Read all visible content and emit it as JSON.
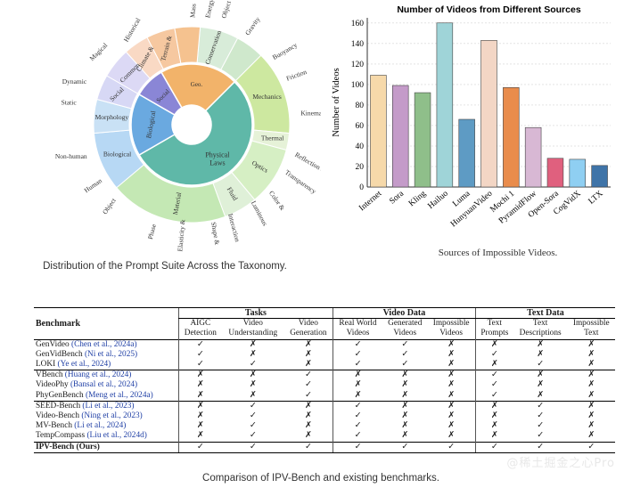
{
  "sunburst": {
    "inner": [
      "Physical Laws",
      "Biological Laws",
      "Social Laws",
      "Geo. Laws"
    ],
    "middle": [
      "Mechanics",
      "Thermal",
      "Optics",
      "Fluid Dynamics",
      "Material Properties",
      "Biological Capability",
      "Morphology",
      "Social Emo.",
      "Common Sense",
      "Climate & Weather",
      "Terrain & Environment",
      "Conservation Laws"
    ],
    "outer": [
      "Mass",
      "Energy",
      "Object Permanence",
      "Gravity",
      "Buoyancy",
      "Friction",
      "Kinematics",
      "Reflection & Refraction",
      "Transparency",
      "Color & Spectrum",
      "Luminous Abnormal",
      "Turbulence",
      "Interaction",
      "Shape & Volume",
      "Elasticity & Deformation",
      "Phase Transformations",
      "Object Interaction",
      "Human",
      "Non-human",
      "Static Anomalies",
      "Dynamic changes",
      "Magical Effects",
      "Historical"
    ],
    "caption": "Distribution of the Prompt Suite Across the Taxonomy."
  },
  "chart_data": {
    "type": "bar",
    "title": "Number of Videos from Different Sources",
    "xlabel": "Sources of Impossible Videos.",
    "ylabel": "Number of Videos",
    "ylim": [
      0,
      165
    ],
    "yticks": [
      0,
      20,
      40,
      60,
      80,
      100,
      120,
      140,
      160
    ],
    "categories": [
      "Internet",
      "Sora",
      "Kling",
      "Hailuo",
      "Luma",
      "HunyuanVideo",
      "Mochi 1",
      "PyramidFlow",
      "Open-Sora",
      "CogVidX",
      "LTX"
    ],
    "values": [
      109,
      99,
      92,
      160,
      66,
      143,
      97,
      58,
      28,
      27,
      21
    ],
    "colors": [
      "#f6d9aa",
      "#c49bc9",
      "#8fbf8a",
      "#9fd4d8",
      "#5e9bc4",
      "#f3d6c5",
      "#e98c4c",
      "#d8b8d4",
      "#e0607e",
      "#8fcff2",
      "#3f74a8"
    ],
    "grid": true
  },
  "table": {
    "col_benchmark": "Benchmark",
    "groups": [
      "Tasks",
      "Video Data",
      "Text Data"
    ],
    "subcols": [
      [
        "AIGC",
        "Detection"
      ],
      [
        "Video",
        "Understanding"
      ],
      [
        "Video",
        "Generation"
      ],
      [
        "Real World",
        "Videos"
      ],
      [
        "Generated",
        "Videos"
      ],
      [
        "Impossible",
        "Videos"
      ],
      [
        "Text",
        "Prompts"
      ],
      [
        "Text",
        "Descriptions"
      ],
      [
        "Impossible",
        "Text"
      ]
    ],
    "rows": [
      {
        "name": "GenVideo",
        "cite": "(Chen et al., 2024a)",
        "vals": [
          "✓",
          "✗",
          "✗",
          "✓",
          "✓",
          "✗",
          "✗",
          "✗",
          "✗"
        ],
        "group": 0
      },
      {
        "name": "GenVidBench",
        "cite": "(Ni et al., 2025)",
        "vals": [
          "✓",
          "✗",
          "✗",
          "✓",
          "✓",
          "✗",
          "✓",
          "✗",
          "✗"
        ],
        "group": 0
      },
      {
        "name": "LOKI",
        "cite": "(Ye et al., 2024)",
        "vals": [
          "✓",
          "✓",
          "✗",
          "✓",
          "✓",
          "✗",
          "✗",
          "✓",
          "✗"
        ],
        "group": 0
      },
      {
        "name": "VBench",
        "cite": "(Huang et al., 2024)",
        "vals": [
          "✗",
          "✗",
          "✓",
          "✗",
          "✗",
          "✗",
          "✓",
          "✗",
          "✗"
        ],
        "group": 1
      },
      {
        "name": "VideoPhy",
        "cite": "(Bansal et al., 2024)",
        "vals": [
          "✗",
          "✗",
          "✓",
          "✗",
          "✗",
          "✗",
          "✓",
          "✗",
          "✗"
        ],
        "group": 1
      },
      {
        "name": "PhyGenBench",
        "cite": "(Meng et al., 2024a)",
        "vals": [
          "✗",
          "✗",
          "✓",
          "✗",
          "✗",
          "✗",
          "✓",
          "✗",
          "✗"
        ],
        "group": 1
      },
      {
        "name": "SEED-Bench",
        "cite": "(Li et al., 2023)",
        "vals": [
          "✗",
          "✓",
          "✗",
          "✓",
          "✗",
          "✗",
          "✗",
          "✓",
          "✗"
        ],
        "group": 2
      },
      {
        "name": "Video-Bench",
        "cite": "(Ning et al., 2023)",
        "vals": [
          "✗",
          "✓",
          "✗",
          "✓",
          "✗",
          "✗",
          "✗",
          "✓",
          "✗"
        ],
        "group": 2
      },
      {
        "name": "MV-Bench",
        "cite": "(Li et al., 2024)",
        "vals": [
          "✗",
          "✓",
          "✗",
          "✓",
          "✗",
          "✗",
          "✗",
          "✓",
          "✗"
        ],
        "group": 2
      },
      {
        "name": "TempCompass",
        "cite": "(Liu et al., 2024d)",
        "vals": [
          "✗",
          "✓",
          "✗",
          "✓",
          "✗",
          "✗",
          "✗",
          "✓",
          "✗"
        ],
        "group": 2
      },
      {
        "name": "IPV-Bench (Ours)",
        "cite": "",
        "vals": [
          "✓",
          "✓",
          "✓",
          "✓",
          "✓",
          "✓",
          "✓",
          "✓",
          "✓"
        ],
        "group": 3,
        "bold": true
      }
    ],
    "caption": "Comparison of IPV-Bench and existing benchmarks."
  },
  "watermark": "@稀土掘金之心Pro"
}
